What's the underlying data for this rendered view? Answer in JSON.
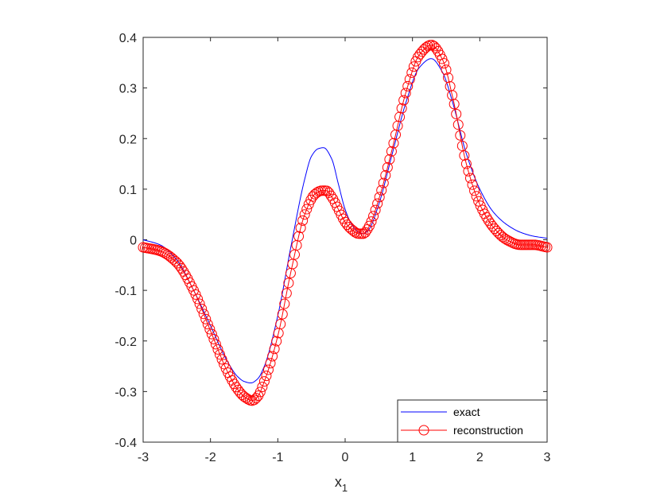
{
  "chart_data": {
    "type": "line",
    "title": "",
    "xlabel": "x",
    "xlabel_subscript": "1",
    "ylabel": "",
    "xlim": [
      -3,
      3
    ],
    "ylim": [
      -0.4,
      0.4
    ],
    "x_ticks": [
      -3,
      -2,
      -1,
      0,
      1,
      2,
      3
    ],
    "y_ticks": [
      -0.4,
      -0.3,
      -0.2,
      -0.1,
      0,
      0.1,
      0.2,
      0.3,
      0.4
    ],
    "x_tick_labels": [
      "-3",
      "-2",
      "-1",
      "0",
      "1",
      "2",
      "3"
    ],
    "y_tick_labels": [
      "-0.4",
      "-0.3",
      "-0.2",
      "-0.1",
      "0",
      "0.1",
      "0.2",
      "0.3",
      "0.4"
    ],
    "grid": false,
    "legend_position": "bottom-right",
    "series": [
      {
        "name": "exact",
        "color": "#0000ff",
        "style": "line",
        "x": [
          -3.0,
          -2.75,
          -2.5,
          -2.25,
          -2.0,
          -1.75,
          -1.6,
          -1.5,
          -1.4,
          -1.3,
          -1.2,
          -1.0,
          -0.8,
          -0.6,
          -0.5,
          -0.4,
          -0.32,
          -0.2,
          -0.1,
          0.0,
          0.1,
          0.2,
          0.27,
          0.35,
          0.5,
          0.7,
          0.9,
          1.1,
          1.28,
          1.45,
          1.6,
          1.8,
          2.0,
          2.2,
          2.4,
          2.6,
          2.8,
          3.0
        ],
        "y": [
          0.0,
          -0.01,
          -0.04,
          -0.1,
          -0.17,
          -0.24,
          -0.27,
          -0.28,
          -0.283,
          -0.275,
          -0.25,
          -0.15,
          -0.01,
          0.12,
          0.165,
          0.18,
          0.182,
          0.16,
          0.11,
          0.06,
          0.03,
          0.015,
          0.012,
          0.02,
          0.07,
          0.17,
          0.27,
          0.34,
          0.358,
          0.33,
          0.27,
          0.17,
          0.1,
          0.055,
          0.03,
          0.015,
          0.007,
          0.003
        ]
      },
      {
        "name": "reconstruction",
        "color": "#ff0000",
        "style": "line-marker-circle",
        "x": [
          -3.0,
          -2.75,
          -2.5,
          -2.25,
          -2.0,
          -1.75,
          -1.6,
          -1.5,
          -1.38,
          -1.3,
          -1.2,
          -1.0,
          -0.8,
          -0.6,
          -0.45,
          -0.35,
          -0.28,
          -0.2,
          -0.1,
          0.0,
          0.1,
          0.2,
          0.27,
          0.35,
          0.5,
          0.7,
          0.9,
          1.1,
          1.28,
          1.45,
          1.6,
          1.8,
          2.0,
          2.2,
          2.4,
          2.6,
          2.8,
          3.0
        ],
        "y": [
          -0.015,
          -0.022,
          -0.045,
          -0.1,
          -0.18,
          -0.26,
          -0.295,
          -0.31,
          -0.318,
          -0.31,
          -0.28,
          -0.19,
          -0.06,
          0.05,
          0.09,
          0.097,
          0.097,
          0.085,
          0.06,
          0.035,
          0.02,
          0.012,
          0.012,
          0.025,
          0.08,
          0.18,
          0.29,
          0.365,
          0.385,
          0.355,
          0.28,
          0.15,
          0.07,
          0.025,
          0.0,
          -0.01,
          -0.01,
          -0.015
        ]
      }
    ]
  }
}
